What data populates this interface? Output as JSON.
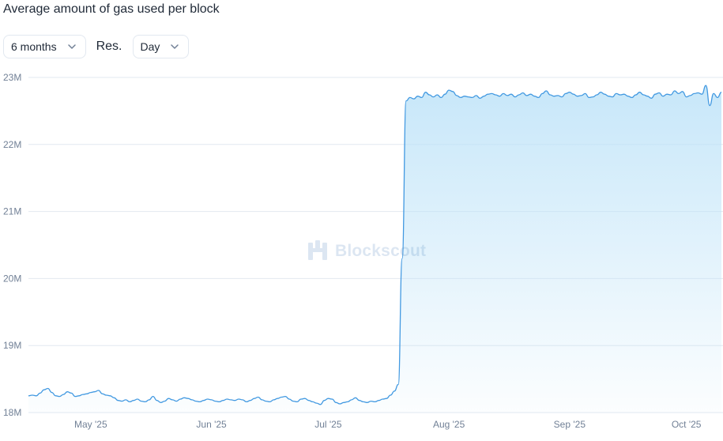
{
  "title": "Average amount of gas used per block",
  "controls": {
    "interval_value": "6 months",
    "resolution_label": "Res.",
    "resolution_value": "Day"
  },
  "watermark": {
    "text": "Blockscout",
    "icon": "blockscout-logo-icon"
  },
  "colors": {
    "line": "#4299e1",
    "area_top": "#bee3f8",
    "grid": "#e2e8f0"
  },
  "chart_data": {
    "type": "area",
    "title": "Average amount of gas used per block",
    "xlabel": "",
    "ylabel": "",
    "ylim": [
      18000000,
      23000000
    ],
    "y_ticks": [
      "23M",
      "22M",
      "21M",
      "20M",
      "19M",
      "18M"
    ],
    "x_ticks": [
      "May '25",
      "Jun '25",
      "Jul '25",
      "Aug '25",
      "Sep '25",
      "Oct '25"
    ],
    "grid": true,
    "start_date": "2025-04-15",
    "series": [
      {
        "name": "",
        "values": [
          18250000,
          18260000,
          18250000,
          18290000,
          18340000,
          18360000,
          18300000,
          18250000,
          18240000,
          18270000,
          18310000,
          18290000,
          18240000,
          18250000,
          18270000,
          18280000,
          18300000,
          18310000,
          18330000,
          18280000,
          18260000,
          18250000,
          18220000,
          18180000,
          18170000,
          18190000,
          18160000,
          18180000,
          18200000,
          18170000,
          18160000,
          18190000,
          18240000,
          18180000,
          18150000,
          18170000,
          18210000,
          18190000,
          18170000,
          18200000,
          18220000,
          18210000,
          18190000,
          18170000,
          18160000,
          18180000,
          18200000,
          18190000,
          18170000,
          18160000,
          18180000,
          18200000,
          18190000,
          18180000,
          18200000,
          18190000,
          18160000,
          18180000,
          18210000,
          18230000,
          18190000,
          18170000,
          18160000,
          18190000,
          18210000,
          18230000,
          18240000,
          18200000,
          18170000,
          18160000,
          18200000,
          18210000,
          18180000,
          18160000,
          18140000,
          18120000,
          18180000,
          18210000,
          18200000,
          18150000,
          18130000,
          18150000,
          18160000,
          18190000,
          18220000,
          18180000,
          18160000,
          18150000,
          18170000,
          18160000,
          18180000,
          18200000,
          18210000,
          18260000,
          18320000,
          18420000,
          20300000,
          22650000,
          22700000,
          22680000,
          22720000,
          22700000,
          22780000,
          22740000,
          22710000,
          22740000,
          22700000,
          22750000,
          22810000,
          22790000,
          22730000,
          22700000,
          22720000,
          22710000,
          22700000,
          22730000,
          22690000,
          22720000,
          22750000,
          22760000,
          22740000,
          22720000,
          22760000,
          22730000,
          22750000,
          22710000,
          22740000,
          22770000,
          22730000,
          22750000,
          22720000,
          22700000,
          22760000,
          22800000,
          22740000,
          22720000,
          22730000,
          22710000,
          22760000,
          22780000,
          22750000,
          22720000,
          22730000,
          22760000,
          22700000,
          22710000,
          22740000,
          22780000,
          22750000,
          22720000,
          22710000,
          22760000,
          22740000,
          22750000,
          22720000,
          22700000,
          22740000,
          22780000,
          22740000,
          22720000,
          22690000,
          22750000,
          22770000,
          22720000,
          22750000,
          22740000,
          22800000,
          22760000,
          22790000,
          22710000,
          22730000,
          22760000,
          22770000,
          22750000,
          22880000,
          22580000,
          22760000,
          22700000,
          22780000
        ]
      }
    ]
  }
}
